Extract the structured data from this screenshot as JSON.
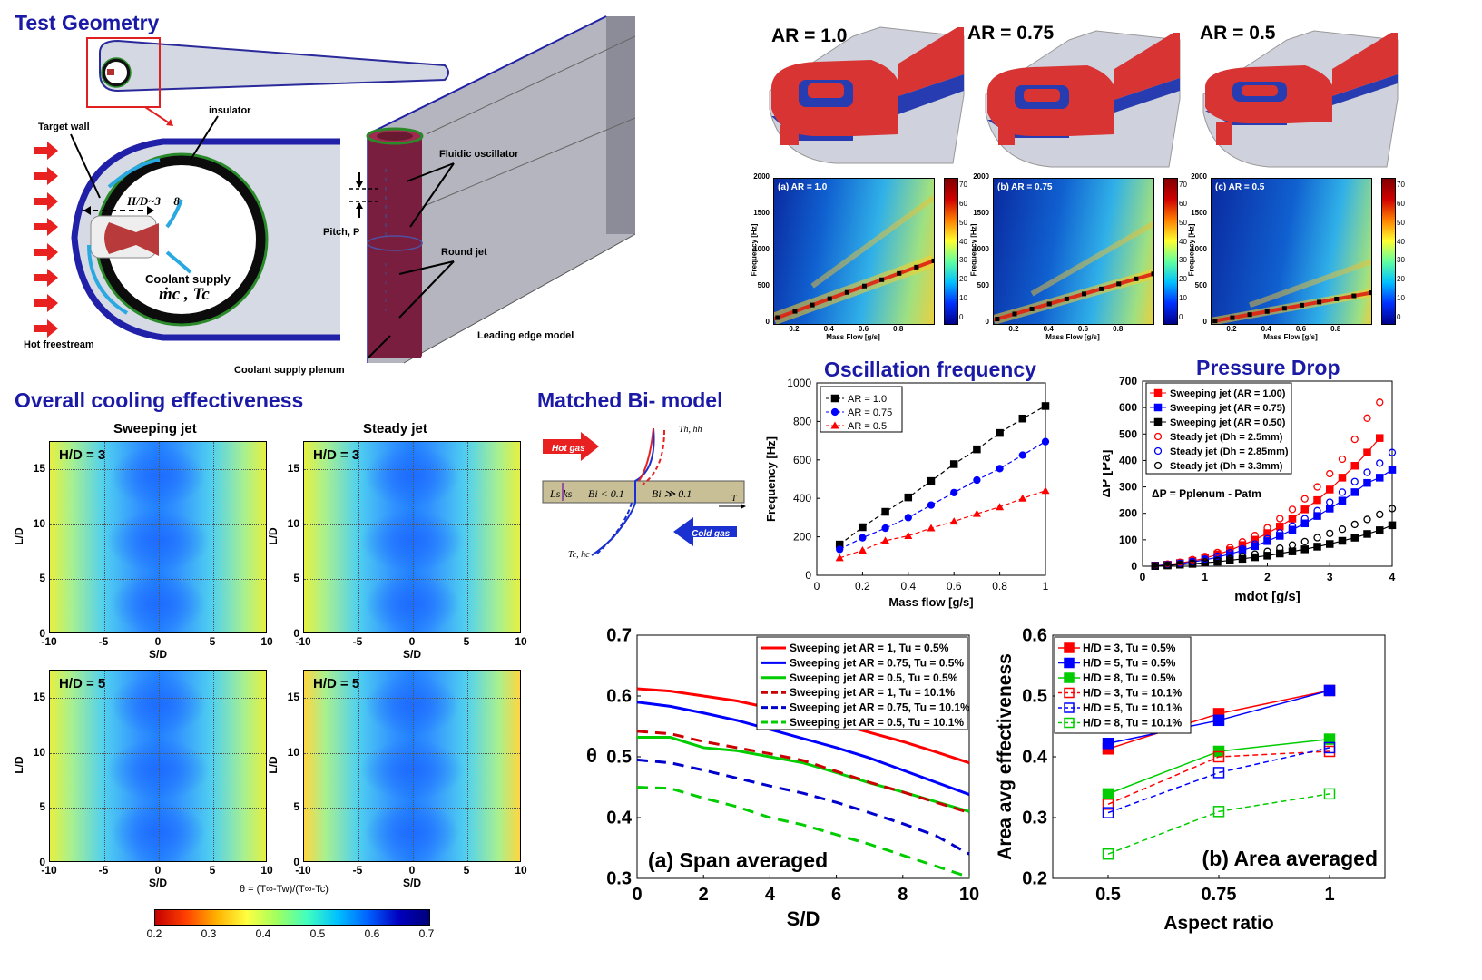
{
  "sections": {
    "test_geometry": "Test Geometry",
    "overall_cooling": "Overall cooling effectiveness",
    "matched_bi": "Matched Bi- model"
  },
  "geometry": {
    "target_wall": "Target wall",
    "insulator": "insulator",
    "hd_range": "H/D~3 − 8",
    "coolant_supply": "Coolant supply",
    "coolant_vars": "ṁc , Tc",
    "hot_freestream": "Hot freestream",
    "fluidic_oscillator": "Fluidic oscillator",
    "pitch": "Pitch, P",
    "round_jet": "Round jet",
    "leading_edge_model": "Leading edge model",
    "plenum": "Coolant supply plenum"
  },
  "aspect_ratios": {
    "ar1": "AR = 1.0",
    "ar075": "AR = 0.75",
    "ar05": "AR = 0.5"
  },
  "spectrograms": {
    "panels": [
      "(a) AR = 1.0",
      "(b) AR = 0.75",
      "(c) AR = 0.5"
    ],
    "ylabel": "Frequency [Hz]",
    "xlabel": "Mass Flow [g/s]",
    "yticks": [
      "0",
      "500",
      "1000",
      "1500",
      "2000"
    ],
    "xticks": [
      "0.2",
      "0.4",
      "0.6",
      "0.8"
    ],
    "cbar_ticks": [
      "70",
      "60",
      "50",
      "40",
      "30",
      "20",
      "10",
      "0"
    ]
  },
  "cooling_maps": {
    "col_titles": [
      "Sweeping jet",
      "Steady jet"
    ],
    "labels": [
      "H/D = 3",
      "H/D = 3",
      "H/D = 5",
      "H/D = 5"
    ],
    "ylabel": "L/D",
    "xlabel": "S/D",
    "xticks": [
      "-10",
      "-5",
      "0",
      "5",
      "10"
    ],
    "yticks": [
      "0",
      "5",
      "10",
      "15"
    ],
    "theta_def": "θ = (T∞-Tw)/(T∞-Tc)",
    "colorbar_ticks": [
      "0.2",
      "0.3",
      "0.4",
      "0.5",
      "0.6",
      "0.7"
    ]
  },
  "bi_model": {
    "hot_gas": "Hot gas",
    "cold_gas": "Cold gas",
    "th_hh": "Th, hh",
    "tc_hc": "Tc, hc",
    "ls_ks": "Ls ks",
    "bi_low": "Bi < 0.1",
    "bi_high": "Bi ≫ 0.1",
    "t_axis": "T"
  },
  "chart_data": [
    {
      "type": "line",
      "title": "Oscillation frequency",
      "xlabel": "Mass flow [g/s]",
      "ylabel": "Frequency [Hz]",
      "xlim": [
        0,
        1
      ],
      "ylim": [
        0,
        1000
      ],
      "xticks": [
        "0",
        "0.2",
        "0.4",
        "0.6",
        "0.8",
        "1"
      ],
      "yticks": [
        "0",
        "200",
        "400",
        "600",
        "800",
        "1000"
      ],
      "legend_position": "top-left",
      "series": [
        {
          "name": "AR = 1.0",
          "color": "#000000",
          "marker": "square",
          "x": [
            0.1,
            0.2,
            0.3,
            0.4,
            0.5,
            0.6,
            0.7,
            0.8,
            0.9,
            1.0
          ],
          "values": [
            160,
            250,
            330,
            405,
            490,
            578,
            655,
            740,
            815,
            880
          ]
        },
        {
          "name": "AR = 0.75",
          "color": "#0000ff",
          "marker": "circle",
          "x": [
            0.1,
            0.2,
            0.3,
            0.4,
            0.5,
            0.6,
            0.7,
            0.8,
            0.9,
            1.0
          ],
          "values": [
            135,
            195,
            245,
            300,
            365,
            430,
            495,
            555,
            625,
            695
          ]
        },
        {
          "name": "AR = 0.5",
          "color": "#ff0000",
          "marker": "triangle",
          "x": [
            0.1,
            0.2,
            0.3,
            0.4,
            0.5,
            0.6,
            0.7,
            0.8,
            0.9,
            1.0
          ],
          "values": [
            90,
            130,
            180,
            205,
            245,
            280,
            320,
            355,
            400,
            440
          ]
        }
      ]
    },
    {
      "type": "line",
      "title": "Pressure Drop",
      "xlabel": "mdot [g/s]",
      "ylabel": "ΔP [Pa]",
      "xlim": [
        0,
        4
      ],
      "ylim": [
        0,
        700
      ],
      "xticks": [
        "0",
        "1",
        "2",
        "3",
        "4"
      ],
      "yticks": [
        "0",
        "100",
        "200",
        "300",
        "400",
        "500",
        "600",
        "700"
      ],
      "annotation": "ΔP = Pplenum - Patm",
      "legend_position": "top-left",
      "series": [
        {
          "name": "Sweeping jet (AR = 1.00)",
          "color": "#ff0000",
          "marker": "filled-square",
          "x": [
            0.2,
            0.4,
            0.6,
            0.8,
            1.0,
            1.2,
            1.4,
            1.6,
            1.8,
            2.0,
            2.2,
            2.4,
            2.6,
            2.8,
            3.0,
            3.2,
            3.4,
            3.6,
            3.8
          ],
          "values": [
            2,
            6,
            12,
            20,
            30,
            45,
            60,
            80,
            100,
            125,
            150,
            180,
            215,
            250,
            290,
            335,
            380,
            430,
            485
          ]
        },
        {
          "name": "Sweeping jet (AR = 0.75)",
          "color": "#0000ff",
          "marker": "filled-square",
          "x": [
            0.2,
            0.4,
            0.6,
            0.8,
            1.0,
            1.2,
            1.4,
            1.6,
            1.8,
            2.0,
            2.2,
            2.4,
            2.6,
            2.8,
            3.0,
            3.2,
            3.4,
            3.6,
            3.8,
            4.0
          ],
          "values": [
            2,
            5,
            10,
            16,
            24,
            34,
            46,
            60,
            76,
            95,
            115,
            138,
            162,
            190,
            218,
            248,
            280,
            315,
            335,
            365
          ]
        },
        {
          "name": "Sweeping jet (AR = 0.50)",
          "color": "#000000",
          "marker": "filled-square",
          "x": [
            0.2,
            0.4,
            0.6,
            0.8,
            1.0,
            1.2,
            1.4,
            1.6,
            1.8,
            2.0,
            2.2,
            2.4,
            2.6,
            2.8,
            3.0,
            3.2,
            3.4,
            3.6,
            3.8,
            4.0
          ],
          "values": [
            1,
            3,
            6,
            9,
            13,
            17,
            22,
            28,
            34,
            40,
            48,
            56,
            64,
            74,
            84,
            96,
            108,
            122,
            136,
            155
          ]
        },
        {
          "name": "Steady jet (Dh = 2.5mm)",
          "color": "#ff0000",
          "marker": "open-circle",
          "x": [
            0.2,
            0.4,
            0.6,
            0.8,
            1.0,
            1.2,
            1.4,
            1.6,
            1.8,
            2.0,
            2.2,
            2.4,
            2.6,
            2.8,
            3.0,
            3.2,
            3.4,
            3.6,
            3.8
          ],
          "values": [
            3,
            8,
            15,
            25,
            37,
            52,
            70,
            92,
            116,
            145,
            180,
            215,
            255,
            300,
            350,
            405,
            480,
            560,
            620
          ]
        },
        {
          "name": "Steady jet (Dh = 2.85mm)",
          "color": "#0000ff",
          "marker": "open-circle",
          "x": [
            0.2,
            0.4,
            0.6,
            0.8,
            1.0,
            1.2,
            1.4,
            1.6,
            1.8,
            2.0,
            2.2,
            2.4,
            2.6,
            2.8,
            3.0,
            3.2,
            3.4,
            3.6,
            3.8,
            4.0
          ],
          "values": [
            2,
            6,
            11,
            18,
            27,
            38,
            51,
            66,
            84,
            104,
            126,
            152,
            180,
            210,
            242,
            280,
            320,
            355,
            390,
            430
          ]
        },
        {
          "name": "Steady jet (Dh = 3.3mm)",
          "color": "#000000",
          "marker": "open-circle",
          "x": [
            0.2,
            0.4,
            0.6,
            0.8,
            1.0,
            1.2,
            1.4,
            1.6,
            1.8,
            2.0,
            2.2,
            2.4,
            2.6,
            2.8,
            3.0,
            3.2,
            3.4,
            3.6,
            3.8,
            4.0
          ],
          "values": [
            1,
            4,
            7,
            11,
            16,
            22,
            29,
            37,
            46,
            56,
            68,
            80,
            93,
            108,
            124,
            140,
            158,
            177,
            196,
            218
          ]
        }
      ]
    },
    {
      "type": "line",
      "title": "(a) Span averaged",
      "xlabel": "S/D",
      "ylabel": "θ",
      "xlim": [
        0,
        10
      ],
      "ylim": [
        0.3,
        0.7
      ],
      "xticks": [
        "0",
        "2",
        "4",
        "6",
        "8",
        "10"
      ],
      "yticks": [
        "0.3",
        "0.4",
        "0.5",
        "0.6",
        "0.7"
      ],
      "legend_position": "top-right",
      "series": [
        {
          "name": "Sweeping jet AR = 1, Tu = 0.5%",
          "color": "#ff0000",
          "dash": false,
          "x": [
            0,
            1,
            2,
            3,
            4,
            5,
            6,
            7,
            8,
            9,
            10
          ],
          "values": [
            0.612,
            0.608,
            0.6,
            0.592,
            0.58,
            0.568,
            0.555,
            0.54,
            0.525,
            0.508,
            0.49
          ]
        },
        {
          "name": "Sweeping jet AR = 0.75, Tu = 0.5%",
          "color": "#0000ff",
          "dash": false,
          "x": [
            0,
            1,
            2,
            3,
            4,
            5,
            6,
            7,
            8,
            9,
            10
          ],
          "values": [
            0.59,
            0.583,
            0.572,
            0.56,
            0.545,
            0.53,
            0.515,
            0.498,
            0.478,
            0.458,
            0.438
          ]
        },
        {
          "name": "Sweeping jet AR = 0.5, Tu = 0.5%",
          "color": "#00cc00",
          "dash": false,
          "x": [
            0,
            1,
            2,
            3,
            4,
            5,
            6,
            7,
            8,
            9,
            10
          ],
          "values": [
            0.532,
            0.532,
            0.515,
            0.51,
            0.5,
            0.49,
            0.474,
            0.457,
            0.442,
            0.426,
            0.41
          ]
        },
        {
          "name": "Sweeping jet AR = 1, Tu = 10.1%",
          "color": "#cc0000",
          "dash": true,
          "x": [
            0,
            1,
            2,
            3,
            4,
            5,
            6,
            7,
            8,
            9,
            10
          ],
          "values": [
            0.542,
            0.538,
            0.525,
            0.515,
            0.505,
            0.494,
            0.476,
            0.458,
            0.442,
            0.425,
            0.408
          ]
        },
        {
          "name": "Sweeping jet AR = 0.75, Tu = 10.1%",
          "color": "#0000cc",
          "dash": true,
          "x": [
            0,
            1,
            2,
            3,
            4,
            5,
            6,
            7,
            8,
            9,
            10
          ],
          "values": [
            0.495,
            0.49,
            0.478,
            0.465,
            0.452,
            0.44,
            0.425,
            0.408,
            0.39,
            0.37,
            0.34
          ]
        },
        {
          "name": "Sweeping jet AR = 0.5, Tu = 10.1%",
          "color": "#00cc00",
          "dash": true,
          "x": [
            0,
            1,
            2,
            3,
            4,
            5,
            6,
            7,
            8,
            9,
            10
          ],
          "values": [
            0.45,
            0.448,
            0.432,
            0.418,
            0.4,
            0.388,
            0.372,
            0.356,
            0.338,
            0.32,
            0.302
          ]
        }
      ]
    },
    {
      "type": "line",
      "title": "(b) Area averaged",
      "xlabel": "Aspect ratio",
      "ylabel": "Area avg effectiveness",
      "categories": [
        "0.5",
        "0.75",
        "1"
      ],
      "ylim": [
        0.2,
        0.6
      ],
      "yticks": [
        "0.2",
        "0.3",
        "0.4",
        "0.5",
        "0.6"
      ],
      "legend_position": "top-left",
      "series": [
        {
          "name": "H/D = 3, Tu = 0.5%",
          "color": "#ff0000",
          "filled": true,
          "values": [
            0.413,
            0.471,
            0.509
          ]
        },
        {
          "name": "H/D = 5, Tu = 0.5%",
          "color": "#0000ff",
          "filled": true,
          "values": [
            0.422,
            0.46,
            0.509
          ]
        },
        {
          "name": "H/D = 8, Tu = 0.5%",
          "color": "#00cc00",
          "filled": true,
          "values": [
            0.339,
            0.409,
            0.429
          ]
        },
        {
          "name": "H/D = 3, Tu = 10.1%",
          "color": "#ff0000",
          "filled": false,
          "values": [
            0.322,
            0.4,
            0.409
          ]
        },
        {
          "name": "H/D = 5, Tu = 10.1%",
          "color": "#0000ff",
          "filled": false,
          "values": [
            0.308,
            0.374,
            0.415
          ]
        },
        {
          "name": "H/D = 8, Tu = 10.1%",
          "color": "#00cc00",
          "filled": false,
          "values": [
            0.24,
            0.31,
            0.339
          ]
        }
      ]
    }
  ]
}
